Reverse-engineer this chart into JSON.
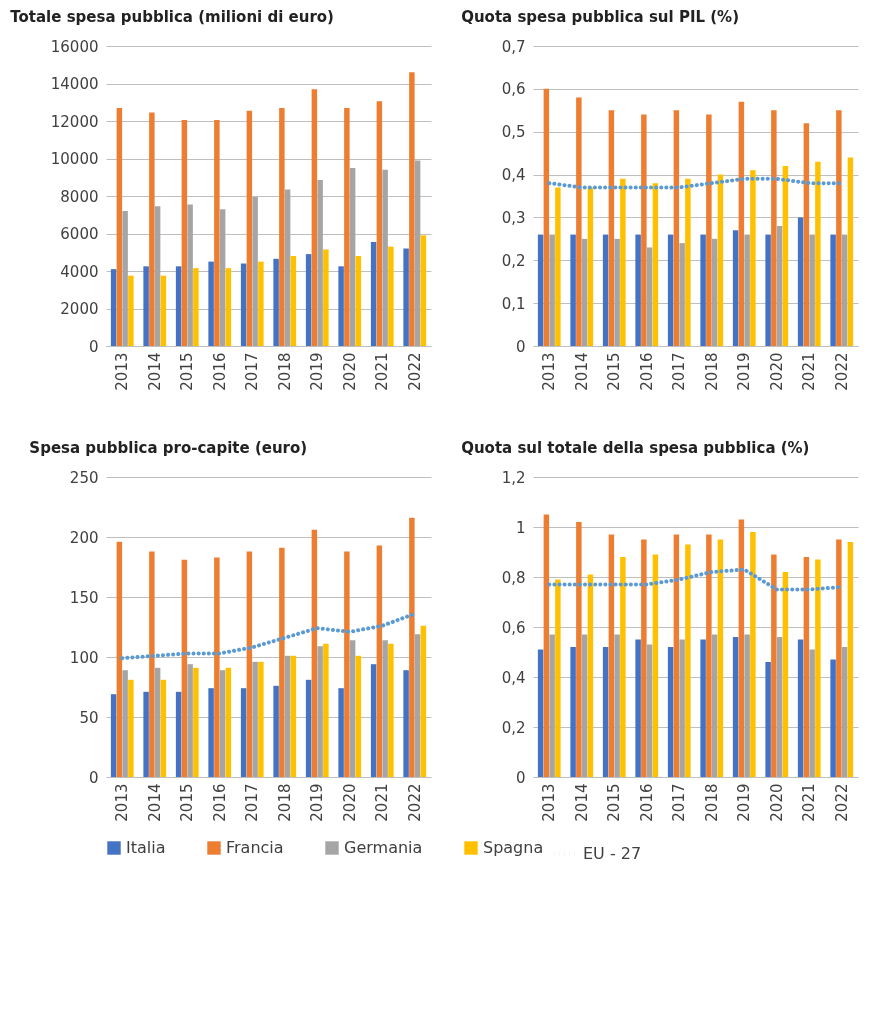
{
  "chart_data": [
    {
      "type": "bar",
      "title": "Totale spesa pubblica (milioni di euro)",
      "categories": [
        "2013",
        "2014",
        "2015",
        "2016",
        "2017",
        "2018",
        "2019",
        "2020",
        "2021",
        "2022"
      ],
      "series": [
        {
          "name": "Italia",
          "color": "#4472c4",
          "values": [
            4100,
            4250,
            4250,
            4500,
            4400,
            4650,
            4900,
            4250,
            5550,
            5200
          ]
        },
        {
          "name": "Francia",
          "color": "#ed7d31",
          "values": [
            12700,
            12450,
            12050,
            12050,
            12550,
            12700,
            13700,
            12700,
            13050,
            14600
          ]
        },
        {
          "name": "Germania",
          "color": "#a5a5a5",
          "values": [
            7200,
            7450,
            7550,
            7300,
            7950,
            8350,
            8850,
            9500,
            9400,
            9900
          ]
        },
        {
          "name": "Spagna",
          "color": "#ffc000",
          "values": [
            3750,
            3750,
            4150,
            4150,
            4500,
            4800,
            5150,
            4800,
            5300,
            5900
          ]
        }
      ],
      "ylim": [
        0,
        16000
      ],
      "yticks": [
        0,
        2000,
        4000,
        6000,
        8000,
        10000,
        12000,
        14000,
        16000
      ],
      "grid": "y",
      "legend": "bottom"
    },
    {
      "type": "bar",
      "title": "Quota spesa pubblica sul PIL (%)",
      "categories": [
        "2013",
        "2014",
        "2015",
        "2016",
        "2017",
        "2018",
        "2019",
        "2020",
        "2021",
        "2022"
      ],
      "series": [
        {
          "name": "Italia",
          "color": "#4472c4",
          "values": [
            0.26,
            0.26,
            0.26,
            0.26,
            0.26,
            0.26,
            0.27,
            0.26,
            0.3,
            0.26
          ]
        },
        {
          "name": "Francia",
          "color": "#ed7d31",
          "values": [
            0.6,
            0.58,
            0.55,
            0.54,
            0.55,
            0.54,
            0.57,
            0.55,
            0.52,
            0.55
          ]
        },
        {
          "name": "Germania",
          "color": "#a5a5a5",
          "values": [
            0.26,
            0.25,
            0.25,
            0.23,
            0.24,
            0.25,
            0.26,
            0.28,
            0.26,
            0.26
          ]
        },
        {
          "name": "Spagna",
          "color": "#ffc000",
          "values": [
            0.37,
            0.37,
            0.39,
            0.38,
            0.39,
            0.4,
            0.41,
            0.42,
            0.43,
            0.44
          ]
        },
        {
          "name": "EU - 27",
          "color": "#5b9bd5",
          "type": "line",
          "line_style": "dotted",
          "values": [
            0.38,
            0.37,
            0.37,
            0.37,
            0.37,
            0.38,
            0.39,
            0.39,
            0.38,
            0.38
          ]
        }
      ],
      "ylim": [
        0,
        0.7
      ],
      "yticks": [
        {
          "value": 0,
          "label": "0"
        },
        {
          "value": 0.1,
          "label": "0,1"
        },
        {
          "value": 0.2,
          "label": "0,2"
        },
        {
          "value": 0.3,
          "label": "0,3"
        },
        {
          "value": 0.4,
          "label": "0,4"
        },
        {
          "value": 0.5,
          "label": "0,5"
        },
        {
          "value": 0.6,
          "label": "0,6"
        },
        {
          "value": 0.7,
          "label": "0,7"
        }
      ],
      "grid": "y",
      "legend": "bottom"
    },
    {
      "type": "bar",
      "title": "Spesa pubblica pro-capite (euro)",
      "categories": [
        "2013",
        "2014",
        "2015",
        "2016",
        "2017",
        "2018",
        "2019",
        "2020",
        "2021",
        "2022"
      ],
      "series": [
        {
          "name": "Italia",
          "color": "#4472c4",
          "values": [
            69,
            71,
            71,
            74,
            74,
            76,
            81,
            74,
            94,
            89
          ]
        },
        {
          "name": "Francia",
          "color": "#ed7d31",
          "values": [
            196,
            188,
            181,
            183,
            188,
            191,
            206,
            188,
            193,
            216
          ]
        },
        {
          "name": "Germania",
          "color": "#a5a5a5",
          "values": [
            89,
            91,
            94,
            89,
            96,
            101,
            109,
            114,
            114,
            119
          ]
        },
        {
          "name": "Spagna",
          "color": "#ffc000",
          "values": [
            81,
            81,
            91,
            91,
            96,
            101,
            111,
            101,
            111,
            126
          ]
        },
        {
          "name": "EU - 27",
          "color": "#5b9bd5",
          "type": "line",
          "line_style": "dotted",
          "values": [
            99,
            101,
            103,
            103,
            108,
            116,
            124,
            121,
            126,
            136
          ]
        }
      ],
      "ylim": [
        0,
        250
      ],
      "yticks": [
        0,
        50,
        100,
        150,
        200,
        250
      ],
      "grid": "y",
      "legend": "bottom"
    },
    {
      "type": "bar",
      "title": "Quota sul totale della spesa pubblica (%)",
      "categories": [
        "2013",
        "2014",
        "2015",
        "2016",
        "2017",
        "2018",
        "2019",
        "2020",
        "2021",
        "2022"
      ],
      "series": [
        {
          "name": "Italia",
          "color": "#4472c4",
          "values": [
            0.51,
            0.52,
            0.52,
            0.55,
            0.52,
            0.55,
            0.56,
            0.46,
            0.55,
            0.47
          ]
        },
        {
          "name": "Francia",
          "color": "#ed7d31",
          "values": [
            1.05,
            1.02,
            0.97,
            0.95,
            0.97,
            0.97,
            1.03,
            0.89,
            0.88,
            0.95
          ]
        },
        {
          "name": "Germania",
          "color": "#a5a5a5",
          "values": [
            0.57,
            0.57,
            0.57,
            0.53,
            0.55,
            0.57,
            0.57,
            0.56,
            0.51,
            0.52
          ]
        },
        {
          "name": "Spagna",
          "color": "#ffc000",
          "values": [
            0.79,
            0.81,
            0.88,
            0.89,
            0.93,
            0.95,
            0.98,
            0.82,
            0.87,
            0.94
          ]
        },
        {
          "name": "EU - 27",
          "color": "#5b9bd5",
          "type": "line",
          "line_style": "dotted",
          "values": [
            0.77,
            0.77,
            0.77,
            0.77,
            0.79,
            0.82,
            0.83,
            0.75,
            0.75,
            0.76
          ]
        }
      ],
      "ylim": [
        0,
        1.2
      ],
      "yticks": [
        {
          "value": 0,
          "label": "0"
        },
        {
          "value": 0.2,
          "label": "0,2"
        },
        {
          "value": 0.4,
          "label": "0,4"
        },
        {
          "value": 0.6,
          "label": "0,6"
        },
        {
          "value": 0.8,
          "label": "0,8"
        },
        {
          "value": 1,
          "label": "1"
        },
        {
          "value": 1.2,
          "label": "1,2"
        }
      ],
      "grid": "y",
      "legend": "bottom"
    }
  ]
}
